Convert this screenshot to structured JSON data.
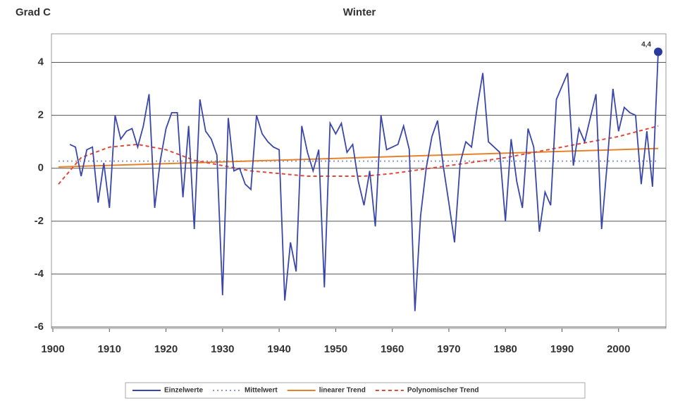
{
  "chart_data": {
    "type": "line",
    "title": "Winter",
    "y_label": "Grad C",
    "x": [
      1903,
      1904,
      1905,
      1906,
      1907,
      1908,
      1909,
      1910,
      1911,
      1912,
      1913,
      1914,
      1915,
      1916,
      1917,
      1918,
      1919,
      1920,
      1921,
      1922,
      1923,
      1924,
      1925,
      1926,
      1927,
      1928,
      1929,
      1930,
      1931,
      1932,
      1933,
      1934,
      1935,
      1936,
      1937,
      1938,
      1939,
      1940,
      1941,
      1942,
      1943,
      1944,
      1945,
      1946,
      1947,
      1948,
      1949,
      1950,
      1951,
      1952,
      1953,
      1954,
      1955,
      1956,
      1957,
      1958,
      1959,
      1960,
      1961,
      1962,
      1963,
      1964,
      1965,
      1966,
      1967,
      1968,
      1969,
      1970,
      1971,
      1972,
      1973,
      1974,
      1975,
      1976,
      1977,
      1978,
      1979,
      1980,
      1981,
      1982,
      1983,
      1984,
      1985,
      1986,
      1987,
      1988,
      1989,
      1990,
      1991,
      1992,
      1993,
      1994,
      1995,
      1996,
      1997,
      1998,
      1999,
      2000,
      2001,
      2002,
      2003,
      2004,
      2005,
      2006,
      2007
    ],
    "series": [
      {
        "name": "Einzelwerte",
        "color": "#3a47a8",
        "style": "solid",
        "values": [
          0.9,
          0.8,
          -0.3,
          0.7,
          0.8,
          -1.3,
          0.2,
          -1.5,
          2.0,
          1.1,
          1.4,
          1.5,
          0.8,
          1.6,
          2.8,
          -1.5,
          0.3,
          1.5,
          2.1,
          2.1,
          -1.1,
          1.6,
          -2.3,
          2.6,
          1.4,
          1.1,
          0.5,
          -4.8,
          1.9,
          -0.1,
          0.0,
          -0.6,
          -0.8,
          2.0,
          1.3,
          1.0,
          0.8,
          0.7,
          -5.0,
          -2.8,
          -3.9,
          1.6,
          0.6,
          -0.1,
          0.7,
          -4.5,
          1.7,
          1.3,
          1.7,
          0.6,
          0.9,
          -0.5,
          -1.4,
          -0.1,
          -2.2,
          2.0,
          0.7,
          0.8,
          0.9,
          1.6,
          0.7,
          -5.4,
          -1.8,
          0.0,
          1.2,
          1.8,
          0.1,
          -1.3,
          -2.8,
          0.2,
          1.0,
          0.8,
          2.3,
          3.6,
          1.0,
          0.8,
          0.6,
          -2.0,
          1.1,
          -0.5,
          -1.5,
          1.5,
          0.8,
          -2.4,
          -0.9,
          -1.4,
          2.6,
          3.1,
          3.6,
          0.1,
          1.5,
          1.0,
          1.9,
          2.8,
          -2.3,
          0.2,
          3.0,
          1.4,
          2.3,
          2.1,
          2.0,
          -0.6,
          1.4,
          -0.7,
          4.4
        ]
      },
      {
        "name": "Mittelwert",
        "color": "#8a9ad0",
        "style": "dotted",
        "x": [
          1901,
          2007
        ],
        "values": [
          0.27,
          0.27
        ]
      },
      {
        "name": "linearer Trend",
        "color": "#e8822a",
        "style": "solid",
        "x": [
          1901,
          2007
        ],
        "values": [
          0.05,
          0.75
        ]
      },
      {
        "name": "Polynomischer Trend",
        "color": "#e04a3a",
        "style": "dashed",
        "x": [
          1901,
          1905,
          1910,
          1915,
          1920,
          1925,
          1930,
          1935,
          1940,
          1945,
          1950,
          1955,
          1960,
          1970,
          1980,
          1990,
          2000,
          2007
        ],
        "values": [
          -0.6,
          0.4,
          0.8,
          0.9,
          0.7,
          0.3,
          0.1,
          -0.1,
          -0.2,
          -0.3,
          -0.3,
          -0.3,
          -0.2,
          0.1,
          0.4,
          0.8,
          1.2,
          1.6
        ]
      }
    ],
    "annotations": [
      {
        "x": 2007,
        "y": 4.4,
        "label": "4,4"
      }
    ],
    "xlim": [
      1900,
      2008
    ],
    "xticks": [
      1900,
      1910,
      1920,
      1930,
      1940,
      1950,
      1960,
      1970,
      1980,
      1990,
      2000
    ],
    "ylim": [
      -6,
      5
    ],
    "yticks": [
      -6,
      -4,
      -2,
      0,
      2,
      4
    ],
    "grid": true
  }
}
